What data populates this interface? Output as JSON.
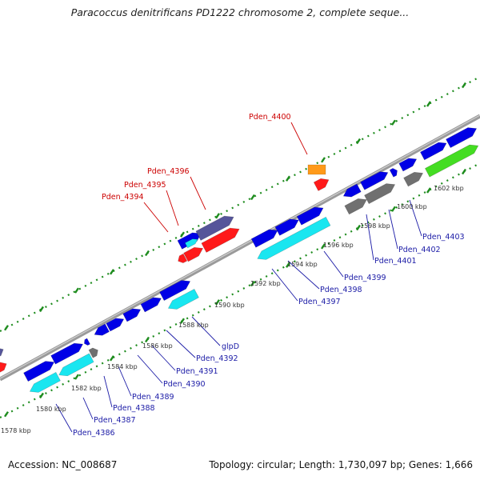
{
  "title": "Paracoccus denitrificans PD1222 chromosome 2, complete seque...",
  "accession": "Accession: NC_008687",
  "summary": "Topology: circular; Length: 1,730,097 bp; Genes: 1,666",
  "colors": {
    "backbone": "#9a9a9a",
    "tick": "#1e8c1e",
    "blue": "#0000e6",
    "cyan": "#19e6f0",
    "red": "#ff1a1a",
    "gray": "#707070",
    "green": "#44dd22",
    "orange": "#ff9a1a",
    "slate": "#55559a",
    "label_blue": "#1a1aa6",
    "label_red": "#cc0000"
  },
  "kbp_labels": [
    "1578 kbp",
    "1580 kbp",
    "1582 kbp",
    "1584 kbp",
    "1586 kbp",
    "1588 kbp",
    "1590 kbp",
    "1592 kbp",
    "1594 kbp",
    "1596 kbp",
    "1598 kbp",
    "1600 kbp",
    "1602 kbp"
  ],
  "gene_labels": {
    "Pden_4386": "Pden_4386",
    "Pden_4387": "Pden_4387",
    "Pden_4388": "Pden_4388",
    "Pden_4389": "Pden_4389",
    "Pden_4390": "Pden_4390",
    "Pden_4391": "Pden_4391",
    "Pden_4392": "Pden_4392",
    "glpD": "glpD",
    "Pden_4397": "Pden_4397",
    "Pden_4398": "Pden_4398",
    "Pden_4399": "Pden_4399",
    "Pden_4401": "Pden_4401",
    "Pden_4402": "Pden_4402",
    "Pden_4403": "Pden_4403",
    "Pden_4394": "Pden_4394",
    "Pden_4395": "Pden_4395",
    "Pden_4396": "Pden_4396",
    "Pden_4400": "Pden_4400"
  }
}
